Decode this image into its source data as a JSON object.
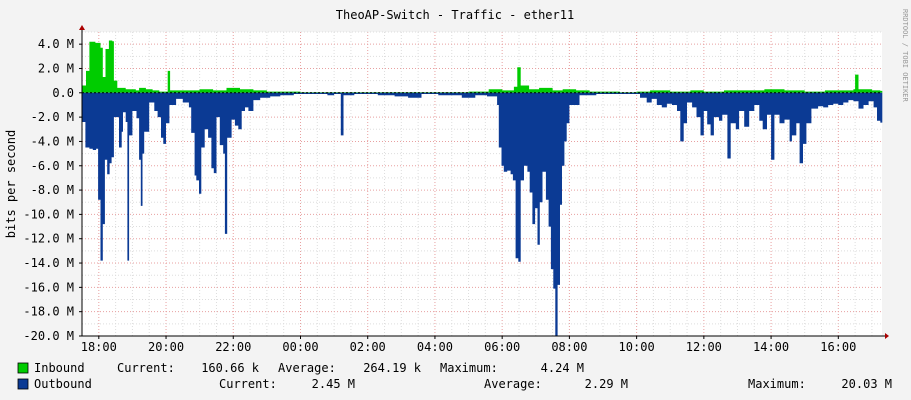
{
  "chart_data": {
    "type": "area",
    "title": "TheoAP-Switch - Traffic - ether11",
    "xlabel": "",
    "ylabel": "bits per second",
    "ylim": [
      -20000000,
      5000000
    ],
    "y_ticks": [
      {
        "value": 4000000,
        "label": "4.0 M"
      },
      {
        "value": 2000000,
        "label": "2.0 M"
      },
      {
        "value": 0,
        "label": "0.0"
      },
      {
        "value": -2000000,
        "label": "-2.0 M"
      },
      {
        "value": -4000000,
        "label": "-4.0 M"
      },
      {
        "value": -6000000,
        "label": "-6.0 M"
      },
      {
        "value": -8000000,
        "label": "-8.0 M"
      },
      {
        "value": -10000000,
        "label": "-10.0 M"
      },
      {
        "value": -12000000,
        "label": "-12.0 M"
      },
      {
        "value": -14000000,
        "label": "-14.0 M"
      },
      {
        "value": -16000000,
        "label": "-16.0 M"
      },
      {
        "value": -18000000,
        "label": "-18.0 M"
      },
      {
        "value": -20000000,
        "label": "-20.0 M"
      }
    ],
    "x_range_hours": [
      17.5,
      41.3
    ],
    "x_ticks": [
      {
        "value": 18,
        "label": "18:00"
      },
      {
        "value": 20,
        "label": "20:00"
      },
      {
        "value": 22,
        "label": "22:00"
      },
      {
        "value": 24,
        "label": "00:00"
      },
      {
        "value": 26,
        "label": "02:00"
      },
      {
        "value": 28,
        "label": "04:00"
      },
      {
        "value": 30,
        "label": "06:00"
      },
      {
        "value": 32,
        "label": "08:00"
      },
      {
        "value": 34,
        "label": "10:00"
      },
      {
        "value": 36,
        "label": "12:00"
      },
      {
        "value": 38,
        "label": "14:00"
      },
      {
        "value": 40,
        "label": "16:00"
      }
    ],
    "grid": true,
    "series": [
      {
        "name": "Inbound",
        "color": "#00cc00",
        "current": "160.66 k",
        "average": "264.19 k",
        "maximum": "4.24 M",
        "points": [
          [
            17.5,
            0.6
          ],
          [
            17.62,
            1.8
          ],
          [
            17.72,
            4.2
          ],
          [
            17.9,
            4.1
          ],
          [
            18.05,
            3.7
          ],
          [
            18.12,
            1.3
          ],
          [
            18.2,
            3.6
          ],
          [
            18.3,
            4.3
          ],
          [
            18.4,
            4.24
          ],
          [
            18.45,
            1.0
          ],
          [
            18.55,
            0.4
          ],
          [
            18.8,
            0.3
          ],
          [
            19.1,
            0.2
          ],
          [
            19.2,
            0.4
          ],
          [
            19.4,
            0.3
          ],
          [
            19.6,
            0.2
          ],
          [
            19.8,
            0.1
          ],
          [
            20.05,
            1.8
          ],
          [
            20.12,
            0.2
          ],
          [
            20.4,
            0.2
          ],
          [
            21.0,
            0.3
          ],
          [
            21.4,
            0.2
          ],
          [
            21.8,
            0.4
          ],
          [
            22.2,
            0.3
          ],
          [
            22.6,
            0.2
          ],
          [
            23.0,
            0.1
          ],
          [
            23.4,
            0.1
          ],
          [
            24.0,
            0.05
          ],
          [
            26.0,
            0.05
          ],
          [
            29.0,
            0.1
          ],
          [
            29.6,
            0.3
          ],
          [
            30.0,
            0.2
          ],
          [
            30.35,
            0.5
          ],
          [
            30.45,
            2.1
          ],
          [
            30.55,
            0.6
          ],
          [
            30.8,
            0.3
          ],
          [
            31.1,
            0.4
          ],
          [
            31.5,
            0.2
          ],
          [
            31.8,
            0.3
          ],
          [
            32.2,
            0.2
          ],
          [
            32.6,
            0.1
          ],
          [
            33.5,
            0.05
          ],
          [
            34.0,
            0.1
          ],
          [
            34.4,
            0.2
          ],
          [
            35.0,
            0.1
          ],
          [
            35.6,
            0.2
          ],
          [
            36.0,
            0.1
          ],
          [
            36.6,
            0.2
          ],
          [
            37.2,
            0.2
          ],
          [
            37.8,
            0.3
          ],
          [
            38.4,
            0.2
          ],
          [
            39.0,
            0.1
          ],
          [
            39.6,
            0.2
          ],
          [
            40.1,
            0.2
          ],
          [
            40.45,
            0.3
          ],
          [
            40.5,
            1.5
          ],
          [
            40.6,
            0.3
          ],
          [
            41.0,
            0.2
          ],
          [
            41.25,
            0.16
          ]
        ]
      },
      {
        "name": "Outbound",
        "color": "#0b3a94",
        "current": "2.45 M",
        "average": "2.29 M",
        "maximum": "20.03 M",
        "points": [
          [
            17.5,
            -2.4
          ],
          [
            17.6,
            -4.5
          ],
          [
            17.72,
            -4.6
          ],
          [
            17.82,
            -4.7
          ],
          [
            17.92,
            -4.6
          ],
          [
            17.98,
            -8.8
          ],
          [
            18.05,
            -13.8
          ],
          [
            18.12,
            -10.8
          ],
          [
            18.18,
            -5.5
          ],
          [
            18.25,
            -6.7
          ],
          [
            18.32,
            -5.8
          ],
          [
            18.38,
            -5.3
          ],
          [
            18.45,
            -2.0
          ],
          [
            18.6,
            -4.5
          ],
          [
            18.68,
            -3.2
          ],
          [
            18.72,
            -1.6
          ],
          [
            18.8,
            -2.4
          ],
          [
            18.85,
            -13.8
          ],
          [
            18.9,
            -3.5
          ],
          [
            19.0,
            -1.5
          ],
          [
            19.12,
            -2.1
          ],
          [
            19.2,
            -5.5
          ],
          [
            19.25,
            -9.3
          ],
          [
            19.3,
            -5.0
          ],
          [
            19.35,
            -3.2
          ],
          [
            19.5,
            -0.8
          ],
          [
            19.65,
            -1.5
          ],
          [
            19.75,
            -2.0
          ],
          [
            19.85,
            -3.7
          ],
          [
            19.92,
            -4.2
          ],
          [
            20.0,
            -2.5
          ],
          [
            20.1,
            -1.0
          ],
          [
            20.3,
            -0.5
          ],
          [
            20.5,
            -0.8
          ],
          [
            20.68,
            -1.2
          ],
          [
            20.75,
            -3.3
          ],
          [
            20.85,
            -6.8
          ],
          [
            20.9,
            -7.2
          ],
          [
            20.98,
            -8.3
          ],
          [
            21.05,
            -4.5
          ],
          [
            21.15,
            -3.0
          ],
          [
            21.25,
            -3.7
          ],
          [
            21.35,
            -6.2
          ],
          [
            21.42,
            -6.6
          ],
          [
            21.5,
            -2.0
          ],
          [
            21.6,
            -4.3
          ],
          [
            21.7,
            -5.0
          ],
          [
            21.75,
            -11.6
          ],
          [
            21.82,
            -3.7
          ],
          [
            21.95,
            -2.2
          ],
          [
            22.05,
            -2.7
          ],
          [
            22.15,
            -3.0
          ],
          [
            22.25,
            -1.5
          ],
          [
            22.35,
            -1.2
          ],
          [
            22.45,
            -1.5
          ],
          [
            22.6,
            -0.6
          ],
          [
            22.8,
            -0.4
          ],
          [
            23.1,
            -0.3
          ],
          [
            23.4,
            -0.2
          ],
          [
            23.8,
            -0.1
          ],
          [
            24.2,
            -0.1
          ],
          [
            24.8,
            -0.2
          ],
          [
            25.0,
            -0.1
          ],
          [
            25.2,
            -3.5
          ],
          [
            25.28,
            -0.2
          ],
          [
            25.6,
            -0.1
          ],
          [
            26.0,
            -0.1
          ],
          [
            26.3,
            -0.2
          ],
          [
            26.8,
            -0.3
          ],
          [
            27.2,
            -0.4
          ],
          [
            27.6,
            -0.1
          ],
          [
            28.1,
            -0.2
          ],
          [
            28.4,
            -0.2
          ],
          [
            28.8,
            -0.4
          ],
          [
            29.2,
            -0.2
          ],
          [
            29.55,
            -0.3
          ],
          [
            29.85,
            -1.0
          ],
          [
            29.9,
            -4.5
          ],
          [
            29.98,
            -6.0
          ],
          [
            30.05,
            -6.5
          ],
          [
            30.15,
            -6.4
          ],
          [
            30.25,
            -6.7
          ],
          [
            30.32,
            -7.2
          ],
          [
            30.4,
            -13.6
          ],
          [
            30.48,
            -13.9
          ],
          [
            30.55,
            -7.2
          ],
          [
            30.65,
            -6.0
          ],
          [
            30.75,
            -6.5
          ],
          [
            30.82,
            -8.2
          ],
          [
            30.9,
            -10.8
          ],
          [
            30.98,
            -9.5
          ],
          [
            31.05,
            -12.5
          ],
          [
            31.12,
            -9.0
          ],
          [
            31.2,
            -6.5
          ],
          [
            31.3,
            -8.8
          ],
          [
            31.38,
            -11.0
          ],
          [
            31.45,
            -14.5
          ],
          [
            31.52,
            -16.1
          ],
          [
            31.58,
            -20.0
          ],
          [
            31.65,
            -15.8
          ],
          [
            31.72,
            -9.2
          ],
          [
            31.78,
            -6.0
          ],
          [
            31.85,
            -4.0
          ],
          [
            31.92,
            -2.5
          ],
          [
            32.0,
            -1.0
          ],
          [
            32.3,
            -0.2
          ],
          [
            32.8,
            -0.1
          ],
          [
            33.3,
            -0.1
          ],
          [
            33.8,
            -0.1
          ],
          [
            34.1,
            -0.4
          ],
          [
            34.3,
            -0.8
          ],
          [
            34.45,
            -0.5
          ],
          [
            34.6,
            -1.0
          ],
          [
            34.75,
            -1.2
          ],
          [
            34.9,
            -0.9
          ],
          [
            35.05,
            -1.0
          ],
          [
            35.2,
            -1.5
          ],
          [
            35.3,
            -4.0
          ],
          [
            35.4,
            -2.5
          ],
          [
            35.5,
            -0.8
          ],
          [
            35.65,
            -1.2
          ],
          [
            35.78,
            -2.0
          ],
          [
            35.9,
            -3.5
          ],
          [
            36.0,
            -1.5
          ],
          [
            36.1,
            -2.6
          ],
          [
            36.2,
            -3.5
          ],
          [
            36.3,
            -2.0
          ],
          [
            36.45,
            -2.3
          ],
          [
            36.55,
            -1.8
          ],
          [
            36.7,
            -5.4
          ],
          [
            36.8,
            -2.5
          ],
          [
            36.95,
            -3.0
          ],
          [
            37.05,
            -1.5
          ],
          [
            37.2,
            -2.8
          ],
          [
            37.35,
            -1.5
          ],
          [
            37.5,
            -1.0
          ],
          [
            37.65,
            -2.3
          ],
          [
            37.75,
            -3.0
          ],
          [
            37.88,
            -1.8
          ],
          [
            38.0,
            -5.5
          ],
          [
            38.1,
            -1.8
          ],
          [
            38.25,
            -2.5
          ],
          [
            38.4,
            -2.2
          ],
          [
            38.55,
            -4.0
          ],
          [
            38.62,
            -3.5
          ],
          [
            38.75,
            -2.5
          ],
          [
            38.85,
            -5.8
          ],
          [
            38.95,
            -4.2
          ],
          [
            39.05,
            -2.5
          ],
          [
            39.2,
            -1.3
          ],
          [
            39.4,
            -1.1
          ],
          [
            39.55,
            -1.2
          ],
          [
            39.7,
            -1.0
          ],
          [
            39.85,
            -0.9
          ],
          [
            40.0,
            -1.0
          ],
          [
            40.15,
            -0.8
          ],
          [
            40.3,
            -0.6
          ],
          [
            40.45,
            -0.7
          ],
          [
            40.6,
            -1.3
          ],
          [
            40.75,
            -1.0
          ],
          [
            40.9,
            -0.7
          ],
          [
            41.05,
            -1.2
          ],
          [
            41.15,
            -2.3
          ],
          [
            41.25,
            -2.45
          ]
        ]
      }
    ]
  },
  "legend": {
    "inbound": {
      "name": "Inbound",
      "current_label": "Current:",
      "current": "160.66 k",
      "average_label": "Average:",
      "average": "264.19 k",
      "maximum_label": "Maximum:",
      "maximum": "4.24 M"
    },
    "outbound": {
      "name": "Outbound",
      "current_label": "Current:",
      "current": "2.45 M",
      "average_label": "Average:",
      "average": "2.29 M",
      "maximum_label": "Maximum:",
      "maximum": "20.03 M"
    }
  },
  "watermark": "RRDTOOL / TOBI OETIKER"
}
